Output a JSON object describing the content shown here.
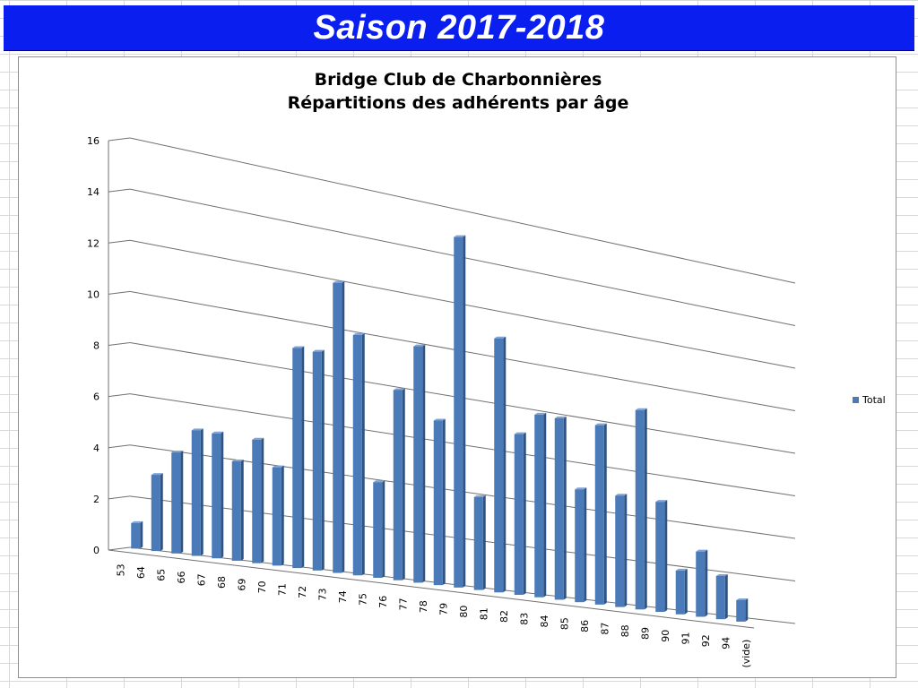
{
  "banner": {
    "title": "Saison 2017-2018",
    "color": "#0a1ef0"
  },
  "chart_data": {
    "type": "bar",
    "title_lines": [
      "Bridge Club de Charbonnières",
      "Répartitions des adhérents par âge"
    ],
    "categories": [
      "53",
      "64",
      "65",
      "66",
      "67",
      "68",
      "69",
      "70",
      "71",
      "72",
      "73",
      "74",
      "75",
      "76",
      "77",
      "78",
      "79",
      "80",
      "81",
      "82",
      "83",
      "84",
      "85",
      "86",
      "87",
      "88",
      "89",
      "90",
      "91",
      "92",
      "94",
      "(vide)"
    ],
    "series": [
      {
        "name": "Total",
        "color": "#4a7ab8",
        "values": [
          1,
          3,
          4,
          5,
          5,
          4,
          5,
          4,
          9,
          9,
          12,
          10,
          4,
          8,
          10,
          7,
          15,
          4,
          11,
          7,
          8,
          8,
          5,
          8,
          5,
          9,
          5,
          2,
          3,
          2,
          1,
          0
        ]
      }
    ],
    "ylim": [
      0,
      16
    ],
    "yticks": [
      0,
      2,
      4,
      6,
      8,
      10,
      12,
      14,
      16
    ],
    "legend": {
      "position": "right",
      "label": "Total"
    },
    "grid": true,
    "projection": "3d-perspective"
  }
}
